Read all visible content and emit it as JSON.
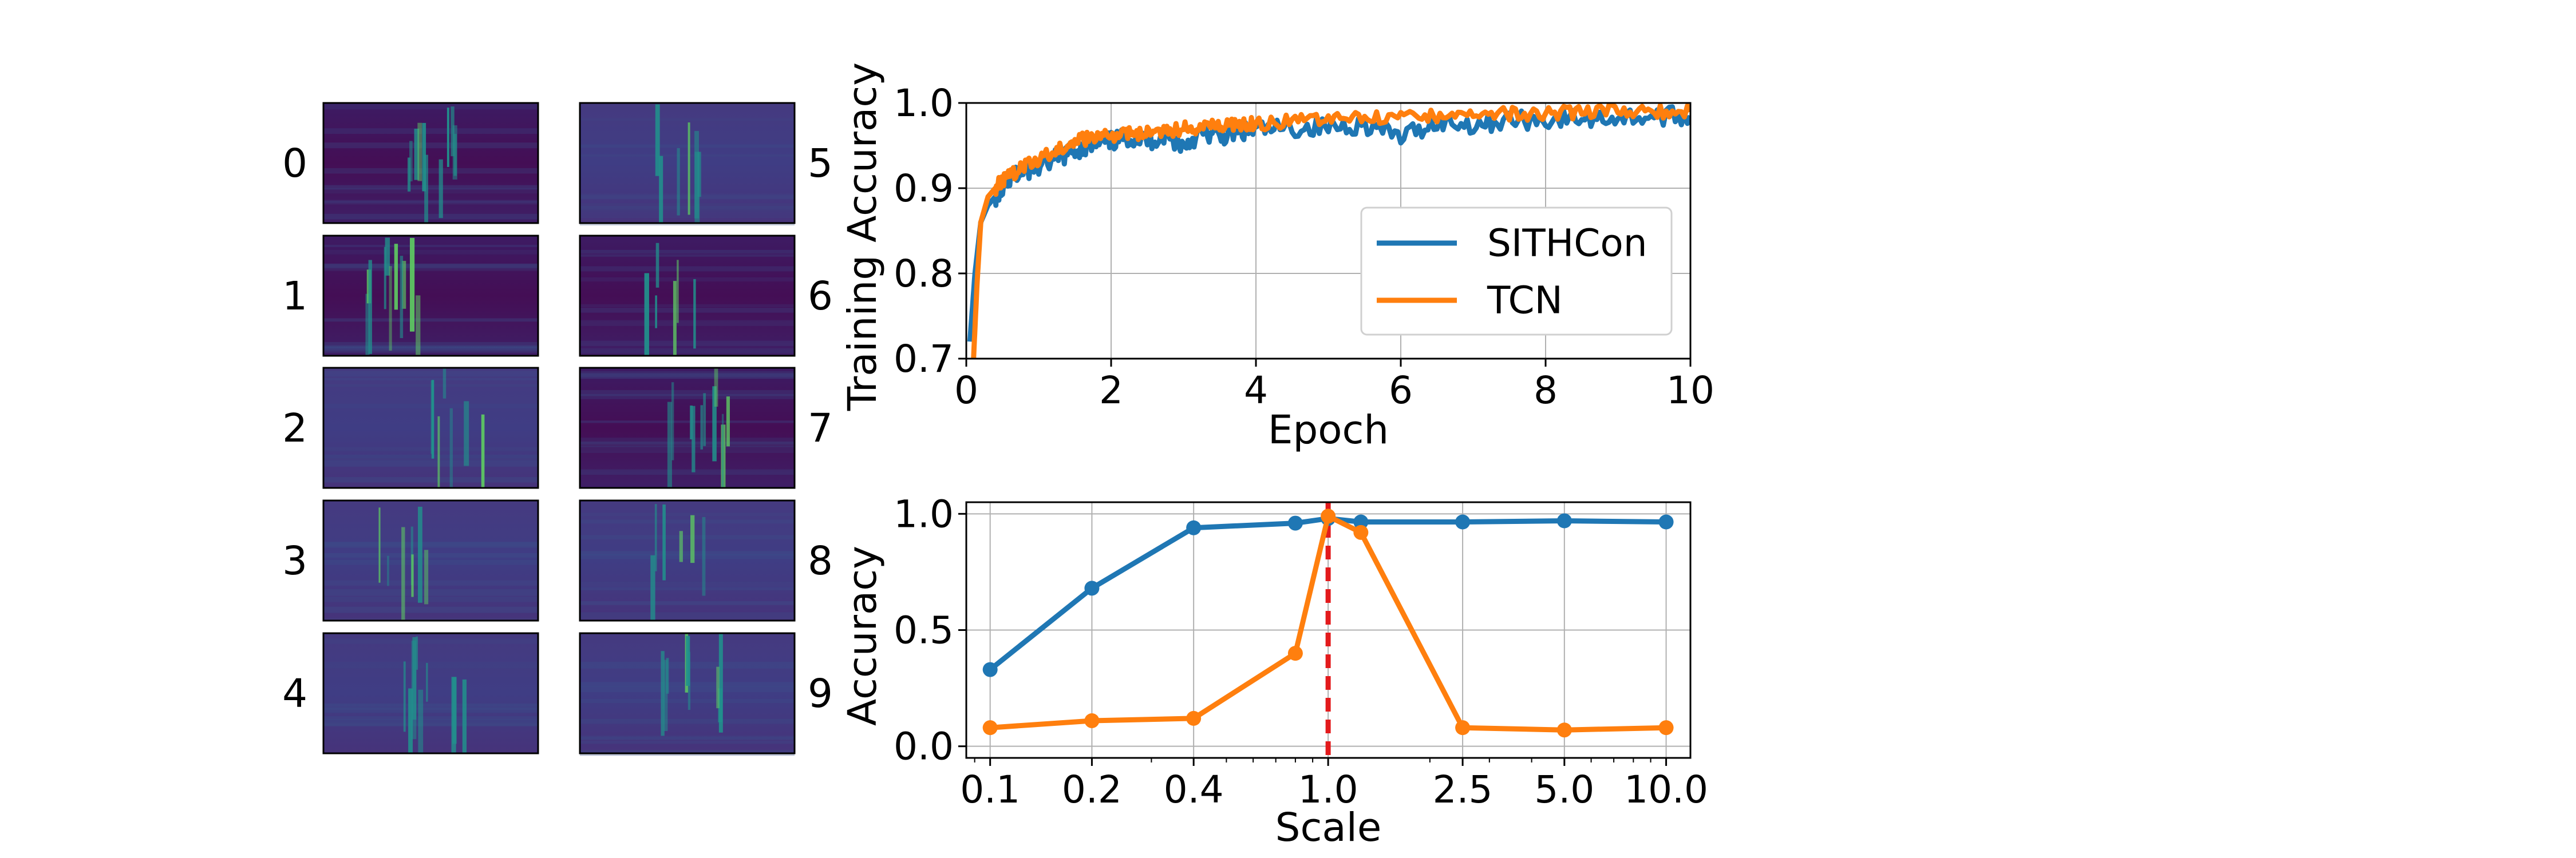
{
  "colors": {
    "sithcon": "#1f77b4",
    "tcn": "#ff7f0e",
    "reference_line": "#e31a1c",
    "grid": "#b0b0b0"
  },
  "digit_panels": {
    "colormap": "viridis",
    "labels": [
      "0",
      "1",
      "2",
      "3",
      "4",
      "5",
      "6",
      "7",
      "8",
      "9"
    ]
  },
  "chart_data": [
    {
      "type": "line",
      "title": "",
      "xlabel": "Epoch",
      "ylabel": "Training Accuracy",
      "xlim": [
        0,
        10
      ],
      "ylim": [
        0.7,
        1.0
      ],
      "xticks": [
        0,
        2,
        4,
        6,
        8,
        10
      ],
      "xtick_labels": [
        "0",
        "2",
        "4",
        "6",
        "8",
        "10"
      ],
      "yticks": [
        0.7,
        0.8,
        0.9,
        1.0
      ],
      "ytick_labels": [
        "0.7",
        "0.8",
        "0.9",
        "1.0"
      ],
      "grid": true,
      "legend_position": "center-right",
      "series": [
        {
          "name": "SITHCon",
          "color": "#1f77b4",
          "x": [
            0.05,
            0.12,
            0.2,
            0.3,
            0.4,
            0.5,
            0.6,
            0.8,
            1.0,
            1.25,
            1.5,
            1.75,
            2.0,
            2.25,
            2.5,
            2.75,
            3.0,
            3.25,
            3.5,
            3.75,
            4.0,
            4.5,
            5.0,
            5.5,
            6.0,
            6.5,
            7.0,
            7.5,
            8.0,
            8.5,
            9.0,
            9.5,
            10.0
          ],
          "y": [
            0.72,
            0.8,
            0.86,
            0.88,
            0.89,
            0.9,
            0.91,
            0.92,
            0.925,
            0.935,
            0.945,
            0.95,
            0.955,
            0.96,
            0.955,
            0.962,
            0.95,
            0.965,
            0.96,
            0.965,
            0.968,
            0.97,
            0.972,
            0.975,
            0.96,
            0.978,
            0.975,
            0.98,
            0.98,
            0.982,
            0.983,
            0.984,
            0.985
          ]
        },
        {
          "name": "TCN",
          "color": "#ff7f0e",
          "x": [
            0.1,
            0.15,
            0.2,
            0.3,
            0.4,
            0.5,
            0.6,
            0.8,
            1.0,
            1.25,
            1.5,
            1.75,
            2.0,
            2.25,
            2.5,
            2.75,
            3.0,
            3.25,
            3.5,
            3.75,
            4.0,
            4.5,
            5.0,
            5.5,
            6.0,
            6.5,
            7.0,
            7.5,
            8.0,
            8.5,
            9.0,
            9.5,
            10.0
          ],
          "y": [
            0.7,
            0.79,
            0.86,
            0.89,
            0.9,
            0.91,
            0.915,
            0.925,
            0.935,
            0.945,
            0.955,
            0.96,
            0.962,
            0.965,
            0.965,
            0.968,
            0.97,
            0.972,
            0.974,
            0.975,
            0.976,
            0.978,
            0.98,
            0.982,
            0.984,
            0.985,
            0.986,
            0.987,
            0.988,
            0.989,
            0.99,
            0.99,
            0.99
          ]
        }
      ]
    },
    {
      "type": "line",
      "title": "",
      "xlabel": "Scale",
      "ylabel": "Accuracy",
      "x_scale": "log",
      "xlim": [
        0.085,
        11.8
      ],
      "ylim": [
        -0.05,
        1.05
      ],
      "xticks": [
        0.1,
        0.2,
        0.4,
        1.0,
        2.5,
        5.0,
        10.0
      ],
      "xtick_labels": [
        "0.1",
        "0.2",
        "0.4",
        "1.0",
        "2.5",
        "5.0",
        "10.0"
      ],
      "yticks": [
        0.0,
        0.5,
        1.0
      ],
      "ytick_labels": [
        "0.0",
        "0.5",
        "1.0"
      ],
      "grid": true,
      "reference_line": {
        "x": 1.0,
        "style": "dashed"
      },
      "series": [
        {
          "name": "",
          "color": "#1f77b4",
          "x": [
            0.1,
            0.2,
            0.4,
            0.8,
            1.0,
            1.25,
            2.5,
            5.0,
            10.0
          ],
          "y": [
            0.33,
            0.68,
            0.94,
            0.96,
            0.98,
            0.965,
            0.965,
            0.97,
            0.965
          ]
        },
        {
          "name": "",
          "color": "#ff7f0e",
          "x": [
            0.1,
            0.2,
            0.4,
            0.8,
            1.0,
            1.25,
            2.5,
            5.0,
            10.0
          ],
          "y": [
            0.08,
            0.11,
            0.12,
            0.4,
            0.99,
            0.92,
            0.08,
            0.07,
            0.08
          ]
        }
      ]
    }
  ]
}
